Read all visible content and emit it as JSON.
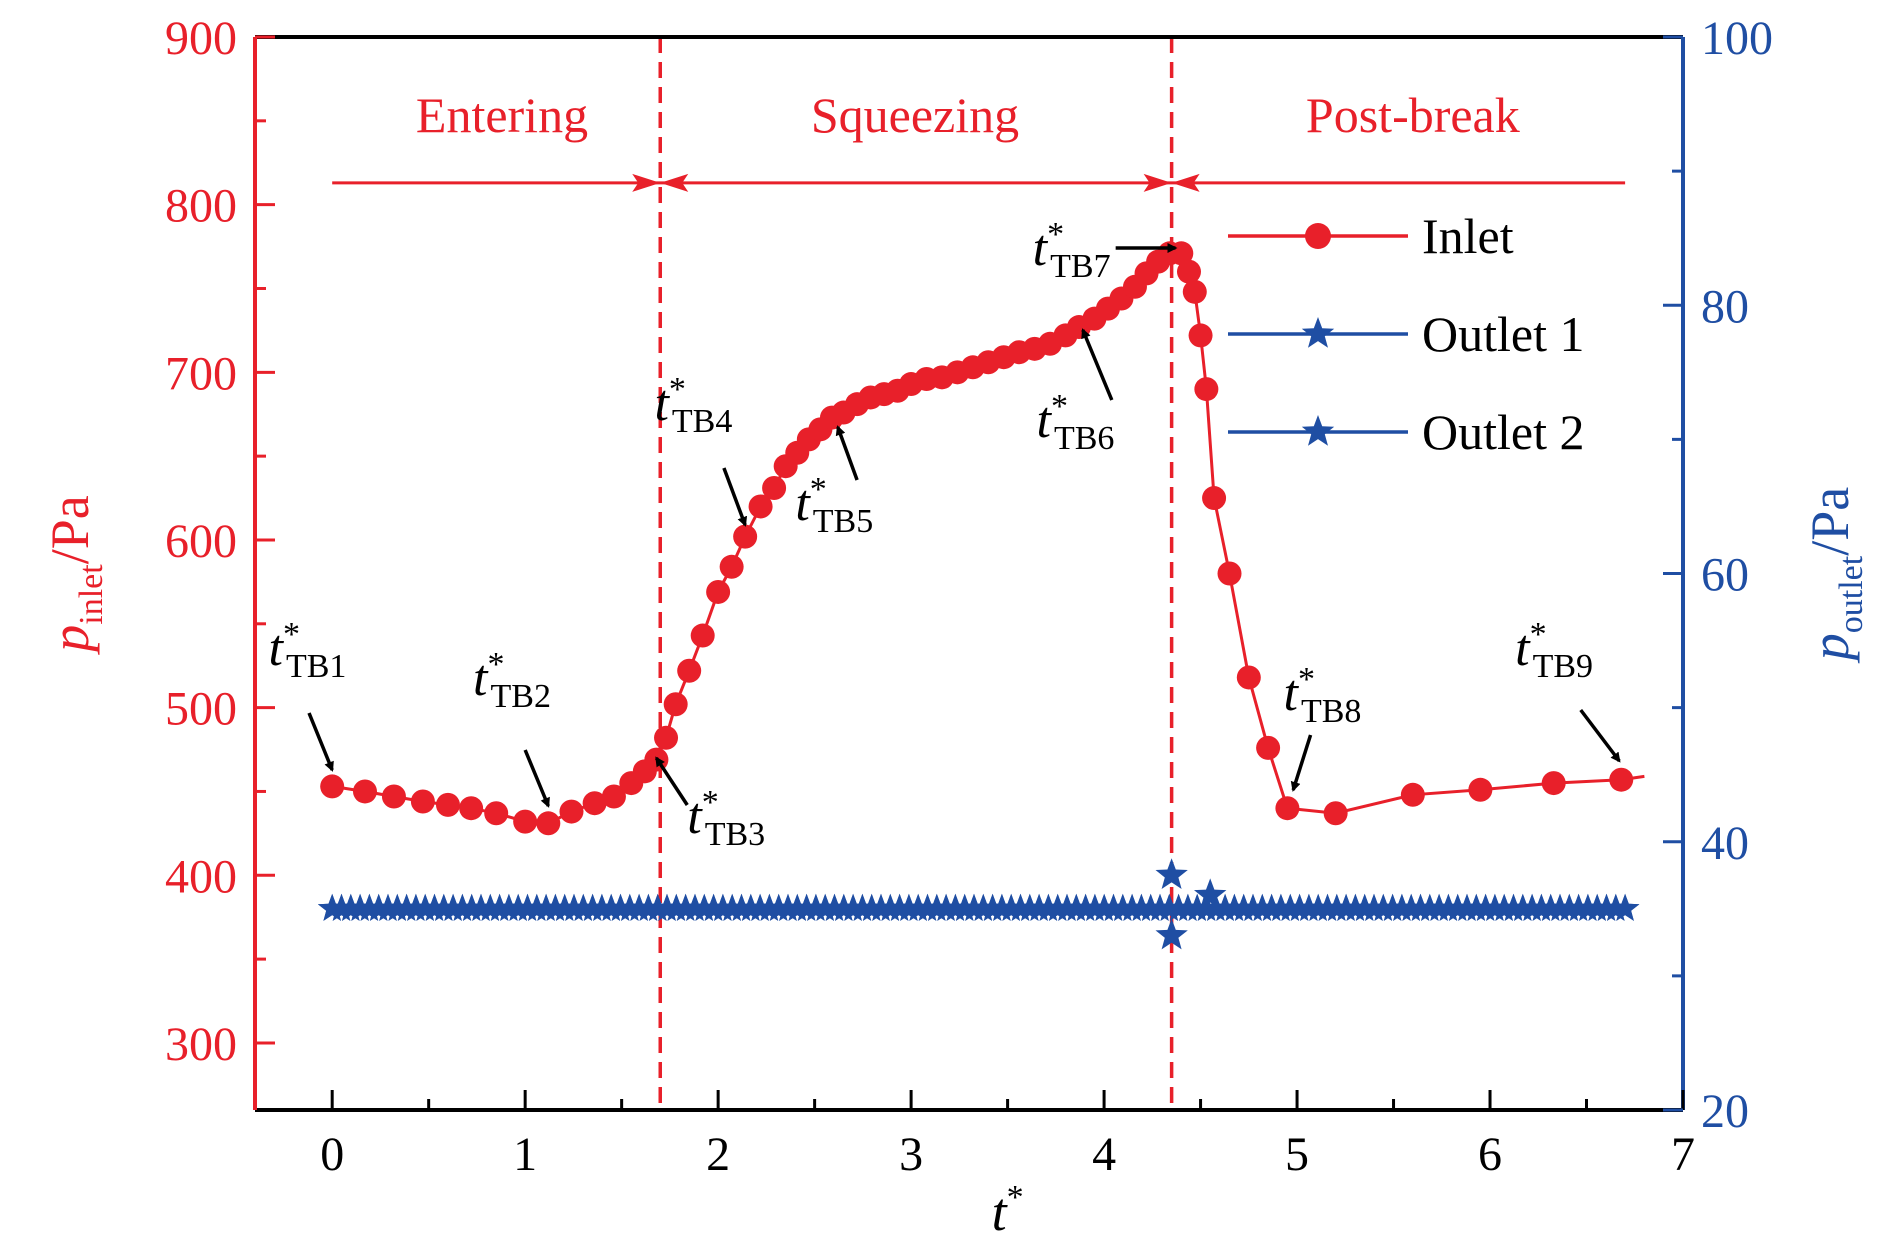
{
  "chart_data": {
    "type": "line",
    "colors": {
      "inlet": "#e8202a",
      "outlet": "#1f4ea3",
      "annotation": "#000000"
    },
    "x_axis": {
      "label": "t*",
      "range": [
        -0.4,
        7.0
      ],
      "ticks": [
        "0",
        "1",
        "2",
        "3",
        "4",
        "5",
        "6",
        "7"
      ],
      "tick_values": [
        0,
        1,
        2,
        3,
        4,
        5,
        6,
        7
      ]
    },
    "y_left": {
      "label_main": "p",
      "label_sub": "inlet",
      "label_unit": "/Pa",
      "range": [
        260,
        900
      ],
      "ticks": [
        "300",
        "400",
        "500",
        "600",
        "700",
        "800",
        "900"
      ],
      "tick_values": [
        300,
        400,
        500,
        600,
        700,
        800,
        900
      ]
    },
    "y_right": {
      "label_main": "p",
      "label_sub": "outlet",
      "label_unit": "/Pa",
      "range": [
        20,
        100
      ],
      "ticks": [
        "20",
        "40",
        "60",
        "80",
        "100"
      ],
      "tick_values": [
        20,
        40,
        60,
        80,
        100
      ]
    },
    "phase_boundaries": [
      1.7,
      4.35
    ],
    "phases": [
      {
        "label": "Entering",
        "x": 0.88
      },
      {
        "label": "Squeezing",
        "x": 3.02
      },
      {
        "label": "Post-break",
        "x": 5.6
      }
    ],
    "phase_arrow_y": 813,
    "phase_arrow_range": [
      0,
      6.7
    ],
    "legend": {
      "position": "top-right",
      "entries": [
        {
          "name": "Inlet",
          "marker": "circle",
          "series": "inlet"
        },
        {
          "name": "Outlet 1",
          "marker": "star",
          "series": "outlet"
        },
        {
          "name": "Outlet 2",
          "marker": "star",
          "series": "outlet"
        }
      ]
    },
    "series": [
      {
        "name": "Inlet",
        "axis": "left",
        "points": [
          [
            0.0,
            453
          ],
          [
            0.17,
            450
          ],
          [
            0.32,
            447
          ],
          [
            0.47,
            444
          ],
          [
            0.6,
            442
          ],
          [
            0.72,
            440
          ],
          [
            0.85,
            437
          ],
          [
            1.0,
            432
          ],
          [
            1.12,
            431
          ],
          [
            1.24,
            438
          ],
          [
            1.36,
            443
          ],
          [
            1.46,
            447
          ],
          [
            1.55,
            455
          ],
          [
            1.62,
            462
          ],
          [
            1.68,
            469
          ],
          [
            1.73,
            482
          ],
          [
            1.78,
            502
          ],
          [
            1.85,
            522
          ],
          [
            1.92,
            543
          ],
          [
            2.0,
            569
          ],
          [
            2.07,
            584
          ],
          [
            2.14,
            602
          ],
          [
            2.22,
            620
          ],
          [
            2.29,
            631
          ],
          [
            2.35,
            644
          ],
          [
            2.41,
            652
          ],
          [
            2.47,
            660
          ],
          [
            2.53,
            666
          ],
          [
            2.59,
            673
          ],
          [
            2.65,
            676
          ],
          [
            2.72,
            681
          ],
          [
            2.79,
            685
          ],
          [
            2.86,
            687
          ],
          [
            2.93,
            689
          ],
          [
            3.0,
            693
          ],
          [
            3.08,
            696
          ],
          [
            3.16,
            697
          ],
          [
            3.24,
            700
          ],
          [
            3.32,
            703
          ],
          [
            3.4,
            706
          ],
          [
            3.48,
            709
          ],
          [
            3.56,
            712
          ],
          [
            3.64,
            714
          ],
          [
            3.72,
            717
          ],
          [
            3.8,
            722
          ],
          [
            3.87,
            727
          ],
          [
            3.95,
            732
          ],
          [
            4.02,
            738
          ],
          [
            4.09,
            744
          ],
          [
            4.16,
            751
          ],
          [
            4.22,
            759
          ],
          [
            4.28,
            766
          ],
          [
            4.34,
            771
          ],
          [
            4.4,
            771
          ],
          [
            4.44,
            760
          ],
          [
            4.47,
            748
          ],
          [
            4.5,
            722
          ],
          [
            4.53,
            690
          ],
          [
            4.57,
            625
          ],
          [
            4.65,
            580
          ],
          [
            4.75,
            518
          ],
          [
            4.85,
            476
          ],
          [
            4.95,
            440
          ],
          [
            5.2,
            437
          ],
          [
            5.6,
            448
          ],
          [
            5.95,
            451
          ],
          [
            6.33,
            455
          ],
          [
            6.68,
            457
          ],
          [
            6.8,
            459
          ]
        ],
        "marker_every": 1
      },
      {
        "name": "Outlet 1",
        "axis": "right",
        "x_start": 0.0,
        "x_end": 6.7,
        "count": 140,
        "value": 35.0,
        "spikes": [
          [
            4.35,
            37.5
          ],
          [
            4.35,
            33.0
          ],
          [
            4.55,
            36.0
          ]
        ]
      },
      {
        "name": "Outlet 2",
        "axis": "right",
        "x_start": 0.0,
        "x_end": 6.7,
        "count": 140,
        "value": 35.0,
        "spikes": []
      }
    ],
    "annotations": [
      {
        "label": "TB1",
        "x": 0.0,
        "y": 453
      },
      {
        "label": "TB2",
        "x": 1.12,
        "y": 431
      },
      {
        "label": "TB3",
        "x": 1.68,
        "y": 469
      },
      {
        "label": "TB4",
        "x": 2.14,
        "y": 602
      },
      {
        "label": "TB5",
        "x": 2.62,
        "y": 675
      },
      {
        "label": "TB6",
        "x": 3.85,
        "y": 724
      },
      {
        "label": "TB7",
        "x": 4.38,
        "y": 772
      },
      {
        "label": "TB8",
        "x": 4.95,
        "y": 440
      },
      {
        "label": "TB9",
        "x": 6.68,
        "y": 457
      }
    ]
  }
}
